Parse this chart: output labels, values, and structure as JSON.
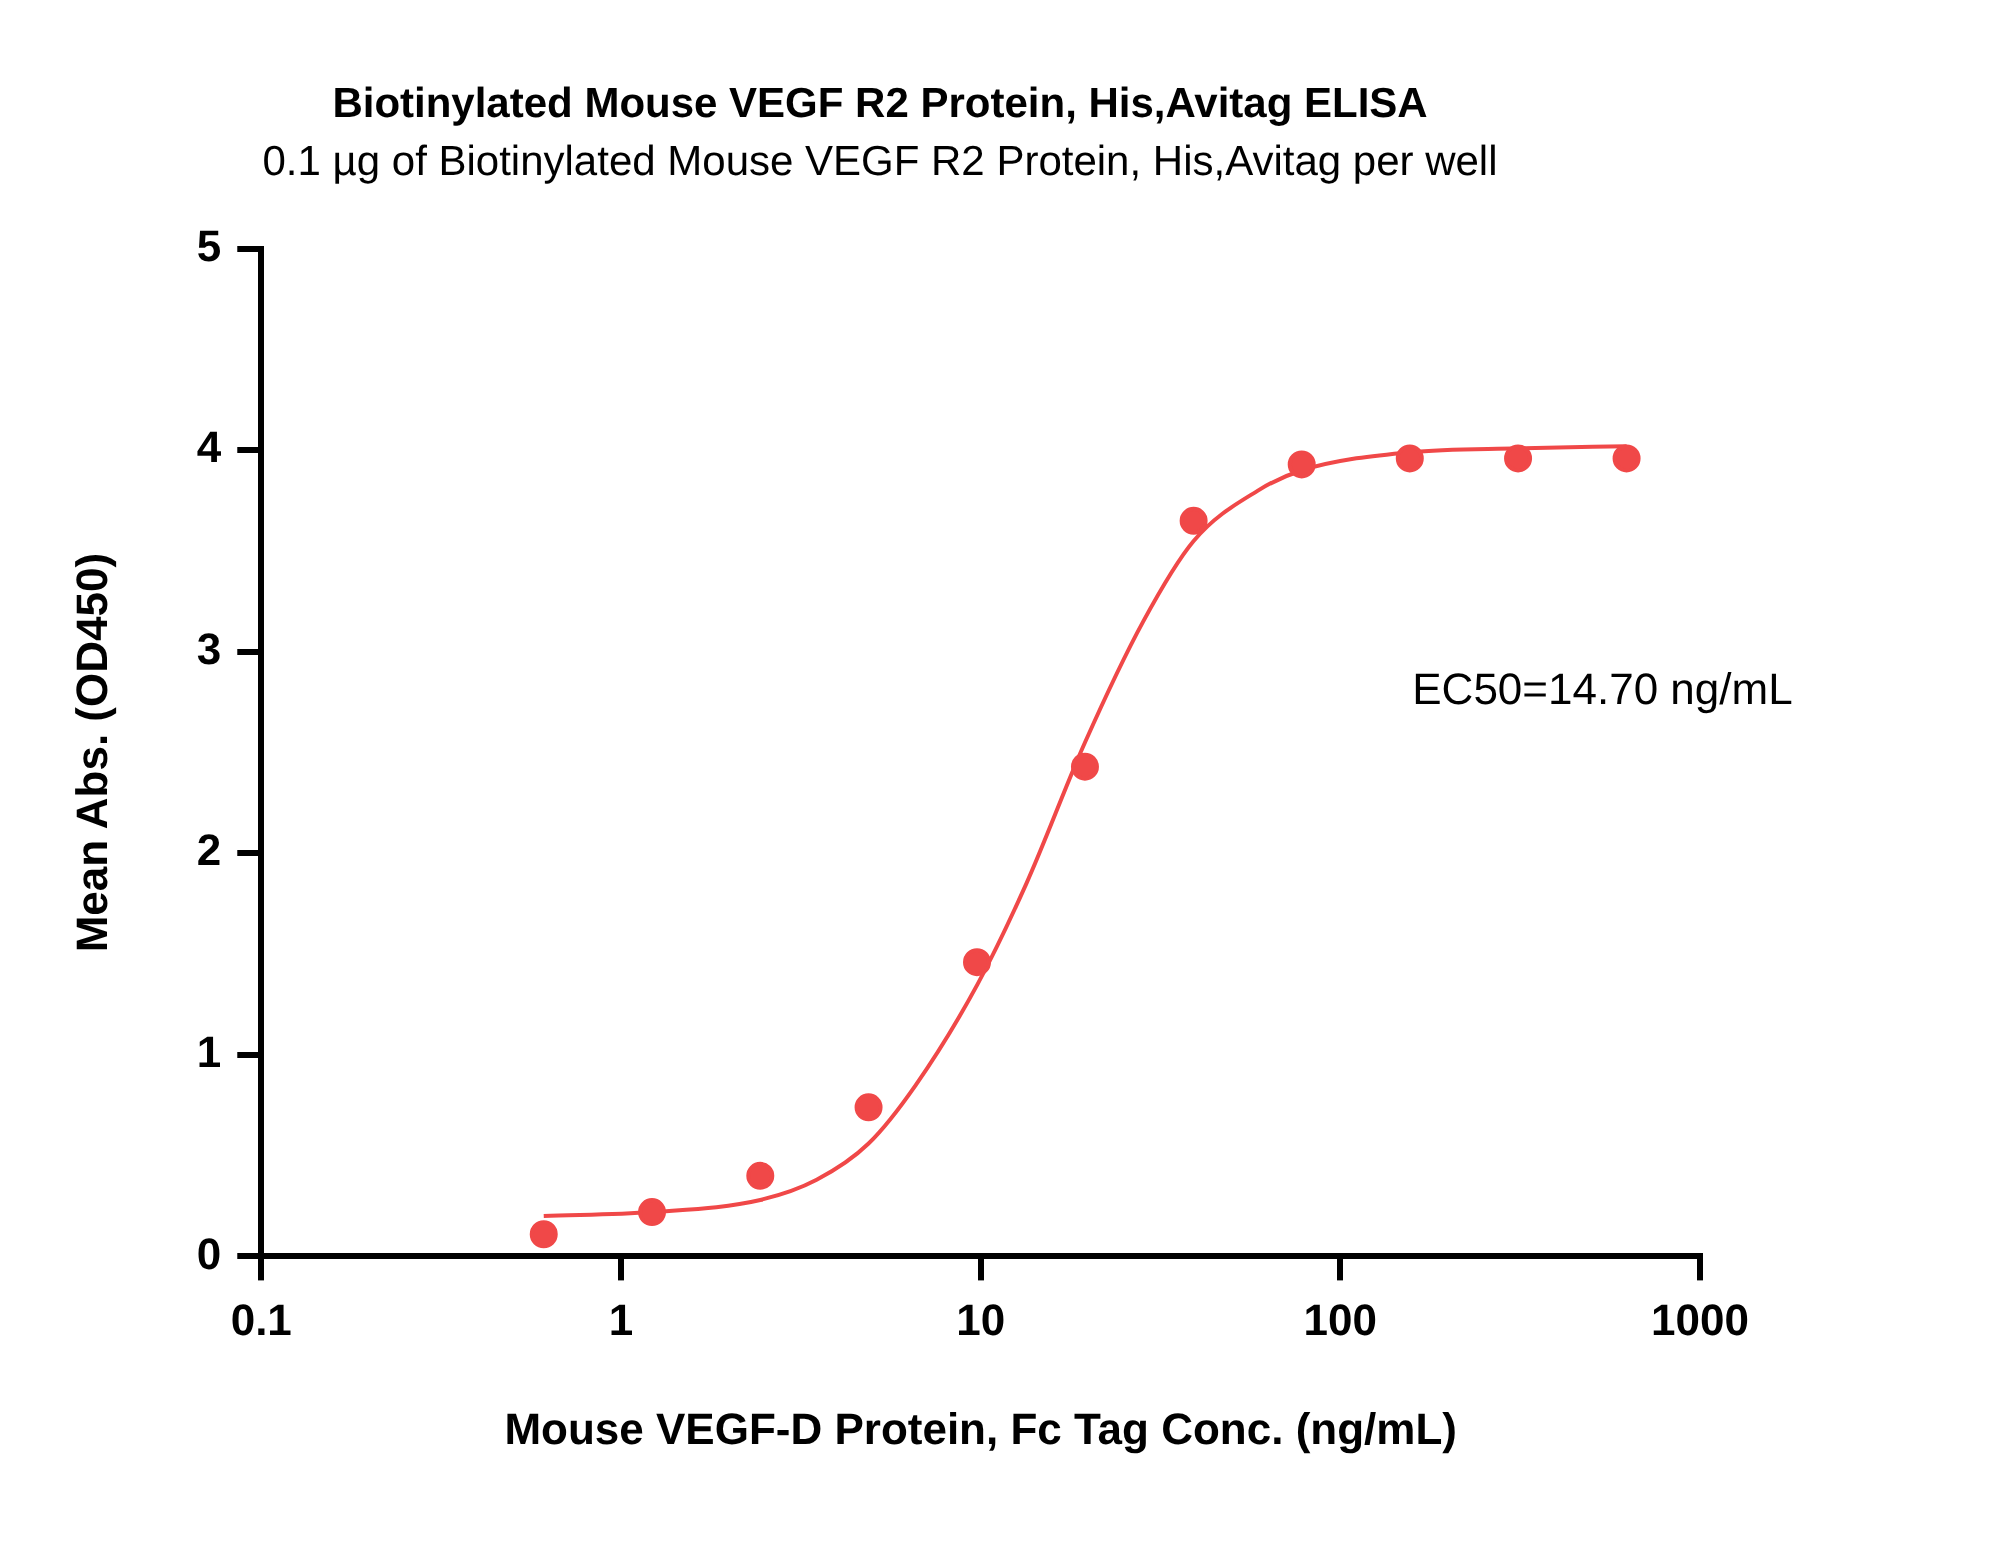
{
  "chart_data": {
    "type": "scatter",
    "title": "Biotinylated Mouse VEGF R2 Protein, His,Avitag ELISA",
    "subtitle": "0.1 µg of Biotinylated Mouse VEGF R2 Protein, His,Avitag per well",
    "xlabel": "Mouse VEGF-D Protein, Fc Tag Conc. (ng/mL)",
    "ylabel": "Mean Abs. (OD450)",
    "annotations": [
      "EC50=14.70 ng/mL"
    ],
    "log": "x",
    "xlim": [
      0.1,
      1000
    ],
    "xticks": [
      0.1,
      1,
      10,
      100,
      1000
    ],
    "ylim": [
      0,
      5
    ],
    "yticks": [
      0,
      1,
      2,
      3,
      4,
      5
    ],
    "grid": false,
    "legend": false,
    "series": [
      {
        "type": "scatter",
        "marker": "circle",
        "color": "#f04848",
        "x": [
          0.61,
          1.22,
          2.44,
          4.88,
          9.77,
          19.5,
          39.1,
          78.1,
          156,
          312,
          625
        ],
        "values": [
          0.11,
          0.22,
          0.4,
          0.74,
          1.46,
          2.43,
          3.65,
          3.93,
          3.96,
          3.96,
          3.96
        ]
      },
      {
        "type": "line",
        "marker": "none",
        "line_style": "solid",
        "color": "#f04848",
        "x": [
          0.61,
          1.22,
          2.44,
          3.5,
          4.88,
          6.6,
          9.8,
          13.4,
          19.5,
          28.3,
          39.1,
          59,
          78,
          156,
          312,
          625
        ],
        "values": [
          0.2,
          0.22,
          0.28,
          0.38,
          0.56,
          0.85,
          1.35,
          1.85,
          2.55,
          3.15,
          3.55,
          3.8,
          3.9,
          3.99,
          4.01,
          4.02
        ]
      }
    ]
  }
}
